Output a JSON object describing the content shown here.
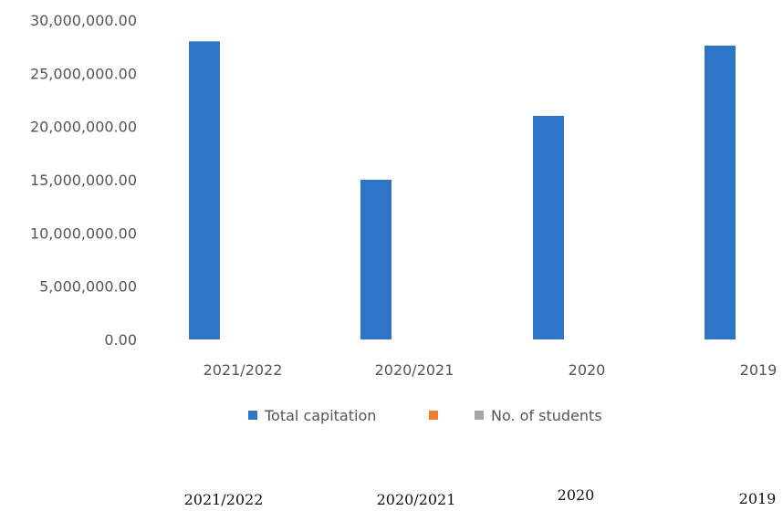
{
  "chart_data": {
    "type": "bar",
    "categories": [
      "2021/2022",
      "2020/2021",
      "2020",
      "2019"
    ],
    "series": [
      {
        "name": "Total capitation",
        "values": [
          28000000,
          15000000,
          21000000,
          27600000
        ],
        "color": "#2e75c8"
      },
      {
        "name": "",
        "values": [
          0,
          0,
          0,
          0
        ],
        "color": "#ed7d31"
      },
      {
        "name": "No. of students",
        "values": [
          0,
          0,
          0,
          0
        ],
        "color": "#a5a5a5"
      }
    ],
    "yticks": [
      "0.00",
      "5,000,000.00",
      "10,000,000.00",
      "15,000,000.00",
      "20,000,000.00",
      "25,000,000.00",
      "30,000,000.00"
    ],
    "ylim": [
      0,
      30000000
    ],
    "grid": false,
    "legend_position": "bottom"
  },
  "footer_labels": [
    "2021/2022",
    "2020/2021",
    "2020",
    "2019"
  ]
}
